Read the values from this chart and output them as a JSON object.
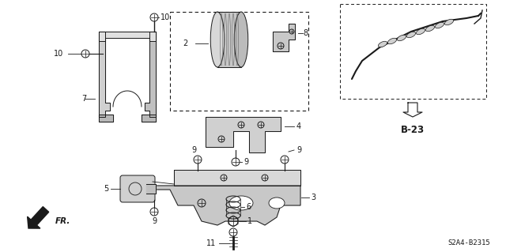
{
  "background_color": "#ffffff",
  "fig_width": 6.4,
  "fig_height": 3.19,
  "dpi": 100,
  "diagram_code": "S2A4-B2315",
  "ref_code": "B-23",
  "fr_label": "FR.",
  "label_fontsize": 7.0,
  "code_fontsize": 6.5
}
